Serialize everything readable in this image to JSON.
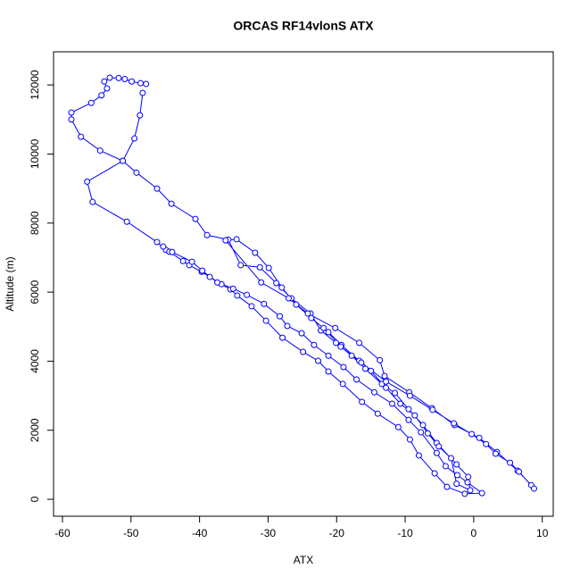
{
  "chart_data": {
    "type": "line",
    "title": "ORCAS RF14vlonS ATX",
    "x_label": "ATX",
    "y_label": "Altitude (m)",
    "color": "#0000ff",
    "xlim": [
      -61.3,
      11.6
    ],
    "ylim": [
      -490,
      12960
    ],
    "xticks": [
      -60,
      -50,
      -40,
      -30,
      -20,
      -10,
      0,
      10
    ],
    "yticks": [
      0,
      2000,
      4000,
      6000,
      8000,
      10000,
      12000
    ],
    "x": [
      -47.8,
      -48.6,
      -49.9,
      -50.9,
      -51.8,
      -53.1,
      -53.9,
      -53.5,
      -54.3,
      -55.8,
      -58.7,
      -58.7,
      -57.3,
      -54.5,
      -51.2,
      -49.2,
      -46.2,
      -44.1,
      -40.6,
      -38.9,
      -35.8,
      -34.0,
      -31.2,
      -28.8,
      -26.6,
      -23.8,
      -22.3,
      -20.1,
      -17.8,
      -15.8,
      -13.4,
      -11.5,
      -9.5,
      -7.4,
      -5.4,
      -2.5,
      -0.8,
      -0.5,
      -2.5,
      -3.3,
      -5.1,
      -6.7,
      -8.6,
      -10.7,
      -12.8,
      -15.0,
      -16.7,
      -19.3,
      -21.2,
      -23.7,
      -25.9,
      -28.0,
      -29.9,
      -31.9,
      -34.6,
      -36.2,
      -31.0,
      -27.0,
      -24.2,
      -20.2,
      -16.7,
      -13.7,
      -13.0,
      -9.4,
      -6.1,
      -2.8,
      0.8,
      3.4,
      6.4,
      8.4,
      8.8,
      6.6,
      5.3,
      3.2,
      1.8,
      -0.3,
      -2.9,
      -6.0,
      -9.3,
      -12.8,
      -16.4,
      -19.4,
      -21.9,
      null,
      -48.3,
      -48.7,
      -49.5,
      -51.2,
      -56.4,
      -55.6,
      -50.6,
      -46.2,
      -44.9,
      -44.4,
      -42.4,
      -41.5,
      -39.7,
      -38.5,
      -36.8,
      -35.5,
      -34.5,
      -32.4,
      -30.3,
      -27.9,
      -24.9,
      -22.7,
      -21.2,
      -19.1,
      -16.3,
      -14.0,
      -11.0,
      -9.3,
      -8.0,
      -5.7,
      -3.9,
      -1.3,
      1.2,
      -0.9,
      -2.4,
      -4.1,
      -5.4,
      -7.7,
      -9.5,
      -11.9,
      -14.5,
      -17.1,
      -19.0,
      -21.2,
      -23.3,
      -25.1,
      -27.2,
      -28.3,
      -30.6,
      -33.1,
      -35.1,
      -37.4,
      -39.6,
      -41.1,
      -44.0,
      -45.3
    ],
    "values": [
      12030,
      12050,
      12100,
      12170,
      12200,
      12210,
      12100,
      11900,
      11700,
      11480,
      11200,
      11000,
      10500,
      10100,
      9800,
      9460,
      9000,
      8560,
      8120,
      7650,
      7520,
      6780,
      6720,
      6260,
      5820,
      5380,
      4890,
      4530,
      4160,
      3780,
      3340,
      3080,
      2610,
      2150,
      1630,
      1010,
      650,
      260,
      450,
      1190,
      1530,
      1910,
      2430,
      2770,
      3230,
      3720,
      4010,
      4470,
      4840,
      5250,
      5640,
      6130,
      6700,
      7140,
      7530,
      7500,
      6280,
      5820,
      5380,
      4960,
      4530,
      4030,
      3570,
      3100,
      2640,
      2150,
      1780,
      1370,
      830,
      410,
      310,
      800,
      1060,
      1320,
      1600,
      1890,
      2200,
      2590,
      3000,
      3410,
      3960,
      4420,
      4960,
      null,
      11770,
      11120,
      10450,
      9800,
      9200,
      8610,
      8040,
      7450,
      7220,
      7170,
      6900,
      6780,
      6590,
      6440,
      6230,
      6080,
      5900,
      5590,
      5170,
      4680,
      4270,
      4010,
      3700,
      3340,
      2820,
      2480,
      2090,
      1730,
      1270,
      750,
      360,
      160,
      180,
      490,
      700,
      960,
      1340,
      1940,
      2300,
      2770,
      3100,
      3470,
      3830,
      4160,
      4470,
      4810,
      5020,
      5300,
      5660,
      5920,
      6100,
      6280,
      6620,
      6880,
      7160,
      7320
    ]
  }
}
